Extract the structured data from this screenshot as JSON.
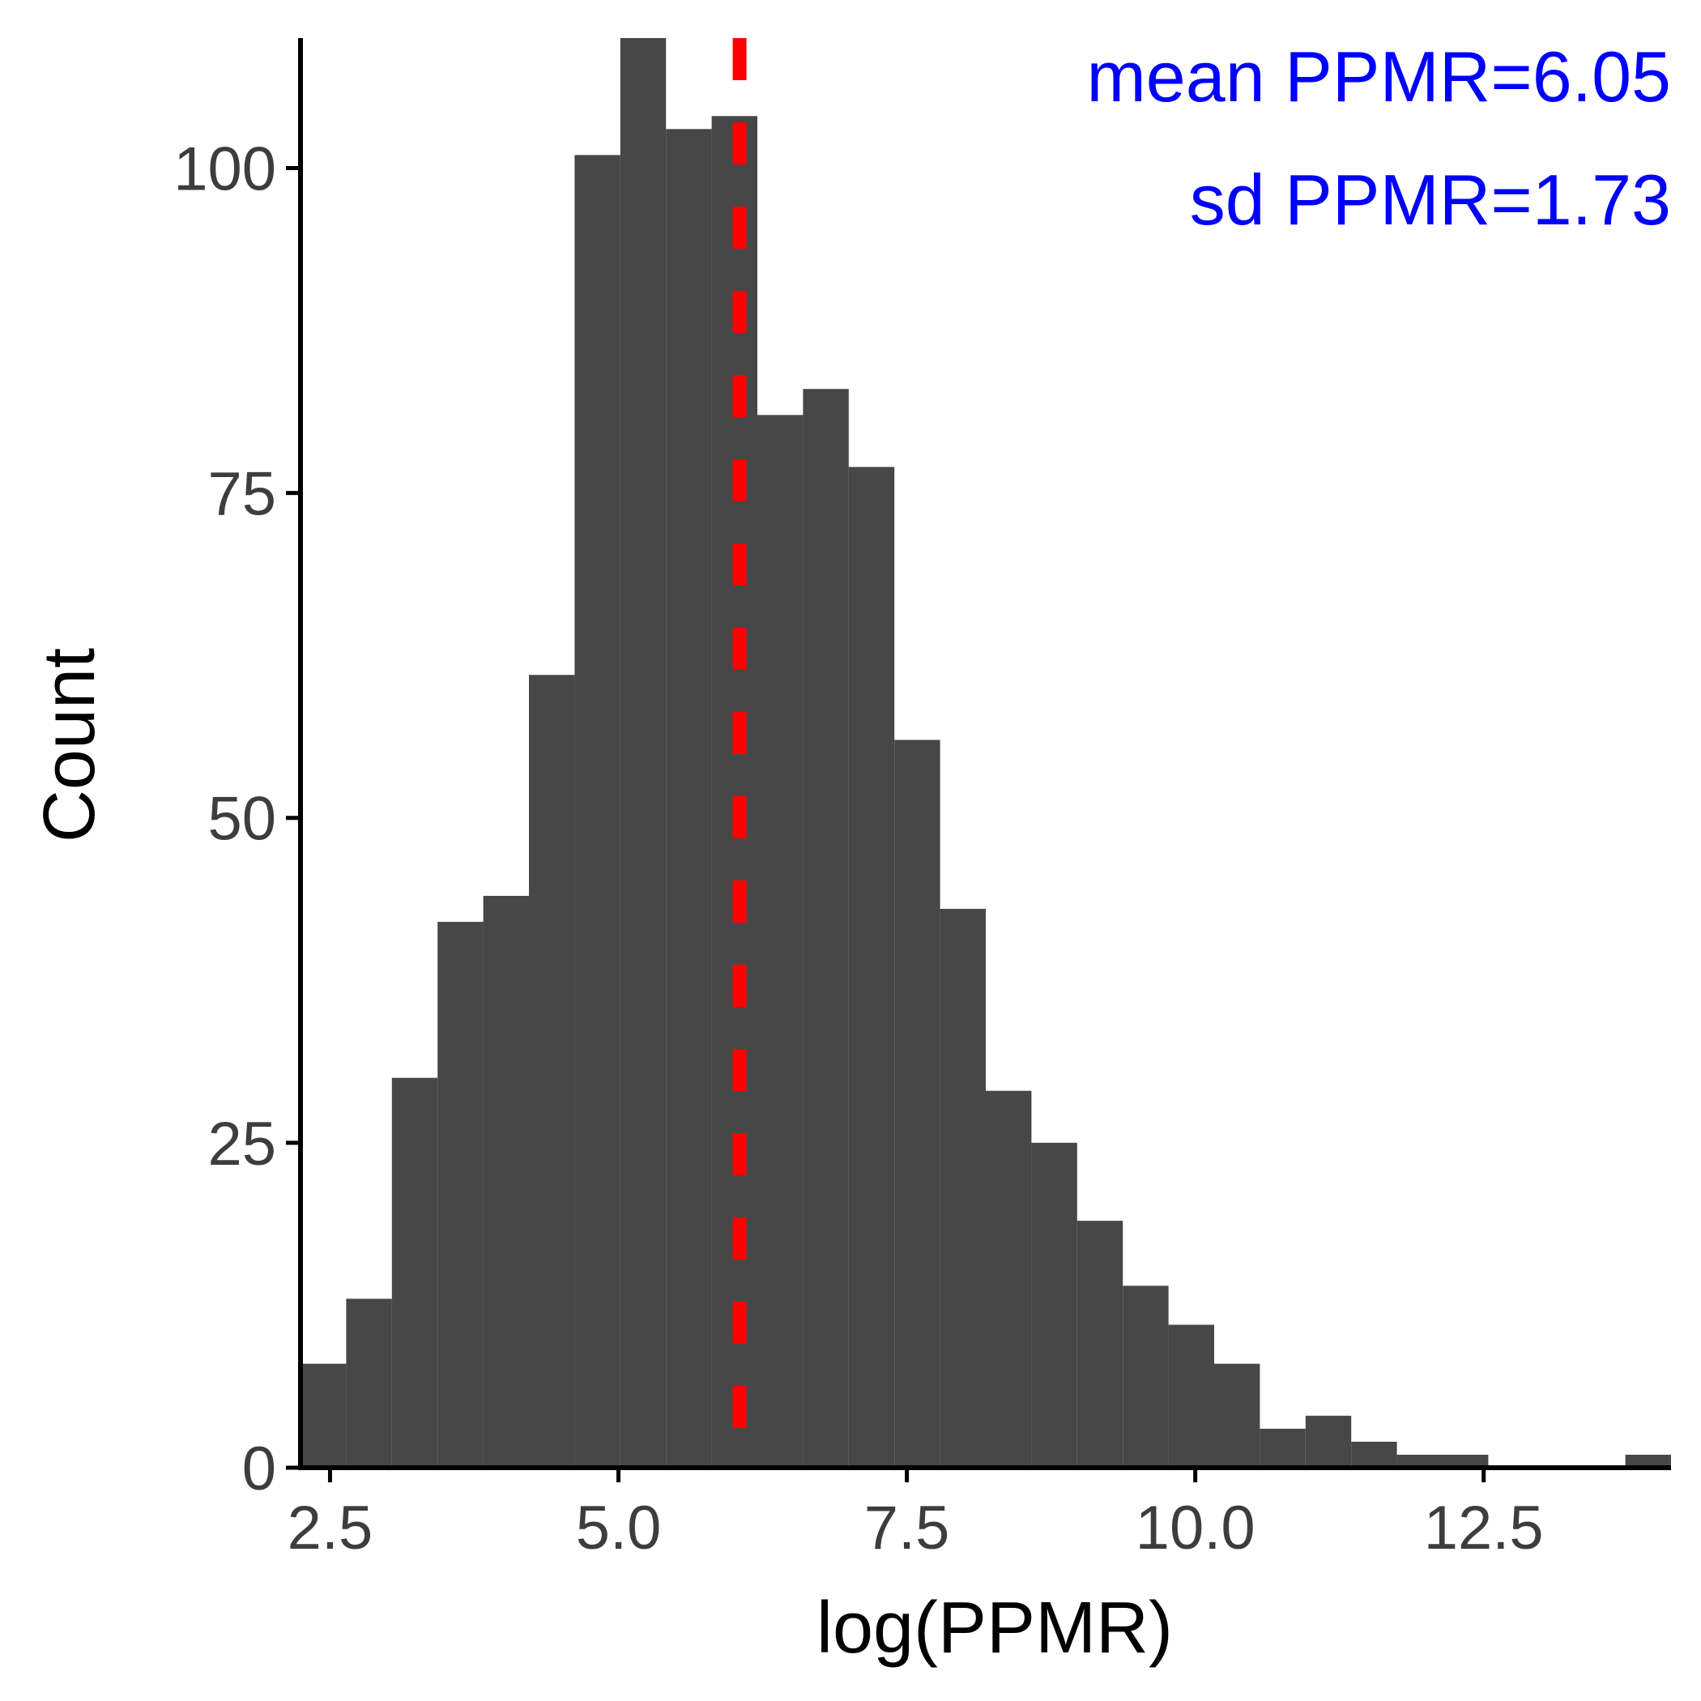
{
  "chart_data": {
    "type": "bar",
    "subtype": "histogram",
    "xlabel": "log(PPMR)",
    "ylabel": "Count",
    "bin_width": 0.396,
    "bins": [
      {
        "x0": 2.244,
        "x1": 2.64,
        "count": 8
      },
      {
        "x0": 2.64,
        "x1": 3.036,
        "count": 13
      },
      {
        "x0": 3.036,
        "x1": 3.432,
        "count": 30
      },
      {
        "x0": 3.432,
        "x1": 3.828,
        "count": 42
      },
      {
        "x0": 3.828,
        "x1": 4.224,
        "count": 44
      },
      {
        "x0": 4.224,
        "x1": 4.62,
        "count": 61
      },
      {
        "x0": 4.62,
        "x1": 5.016,
        "count": 101
      },
      {
        "x0": 5.016,
        "x1": 5.412,
        "count": 110
      },
      {
        "x0": 5.412,
        "x1": 5.808,
        "count": 103
      },
      {
        "x0": 5.808,
        "x1": 6.204,
        "count": 104
      },
      {
        "x0": 6.204,
        "x1": 6.6,
        "count": 81
      },
      {
        "x0": 6.6,
        "x1": 6.996,
        "count": 83
      },
      {
        "x0": 6.996,
        "x1": 7.392,
        "count": 77
      },
      {
        "x0": 7.392,
        "x1": 7.788,
        "count": 56
      },
      {
        "x0": 7.788,
        "x1": 8.184,
        "count": 43
      },
      {
        "x0": 8.184,
        "x1": 8.58,
        "count": 29
      },
      {
        "x0": 8.58,
        "x1": 8.976,
        "count": 25
      },
      {
        "x0": 8.976,
        "x1": 9.372,
        "count": 19
      },
      {
        "x0": 9.372,
        "x1": 9.768,
        "count": 14
      },
      {
        "x0": 9.768,
        "x1": 10.164,
        "count": 11
      },
      {
        "x0": 10.164,
        "x1": 10.56,
        "count": 8
      },
      {
        "x0": 10.56,
        "x1": 10.956,
        "count": 3
      },
      {
        "x0": 10.956,
        "x1": 11.352,
        "count": 4
      },
      {
        "x0": 11.352,
        "x1": 11.748,
        "count": 2
      },
      {
        "x0": 11.748,
        "x1": 12.144,
        "count": 1
      },
      {
        "x0": 12.144,
        "x1": 12.54,
        "count": 1
      },
      {
        "x0": 12.54,
        "x1": 12.936,
        "count": 0
      },
      {
        "x0": 12.936,
        "x1": 13.332,
        "count": 0
      },
      {
        "x0": 13.332,
        "x1": 13.728,
        "count": 0
      },
      {
        "x0": 13.728,
        "x1": 14.124,
        "count": 1
      }
    ],
    "xlim": [
      2.244,
      14.124
    ],
    "ylim": [
      0,
      110
    ],
    "x_ticks": [
      2.5,
      5.0,
      7.5,
      10.0,
      12.5
    ],
    "x_tick_labels": [
      "2.5",
      "5.0",
      "7.5",
      "10.0",
      "12.5"
    ],
    "y_ticks": [
      0,
      25,
      50,
      75,
      100
    ],
    "y_tick_labels": [
      "0",
      "25",
      "50",
      "75",
      "100"
    ],
    "mean_line": {
      "x": 6.05,
      "style": "dashed",
      "color": "#ff0000"
    },
    "annotations": [
      "mean PPMR=6.05",
      "sd PPMR=1.73"
    ],
    "annotation_color": "#0000ff",
    "annotation_placement": "top-right",
    "bar_color": "#474747",
    "grid": false
  }
}
